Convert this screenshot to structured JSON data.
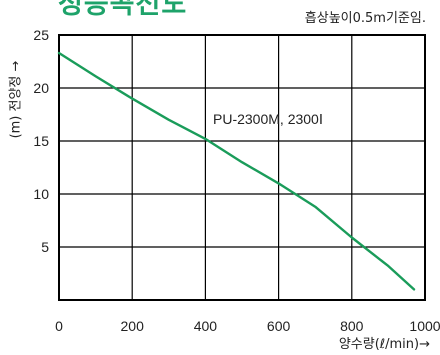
{
  "header": {
    "title_fragment": "성능곡선도",
    "note": "흡상높이0.5m기준임."
  },
  "chart_data": {
    "type": "line",
    "title": "성능곡선도",
    "xlabel": "양수량(ℓ/min)→",
    "ylabel": "(m) 전양정 →",
    "xlim": [
      0,
      1000
    ],
    "ylim": [
      0,
      25
    ],
    "x_ticks": [
      "0",
      "200",
      "400",
      "600",
      "800",
      "1000"
    ],
    "y_ticks": [
      "5",
      "10",
      "15",
      "20",
      "25"
    ],
    "grid": true,
    "series": [
      {
        "name": "PU-2300M, 2300Ⅰ",
        "color": "#1a9c5a",
        "x": [
          0,
          100,
          200,
          300,
          400,
          500,
          600,
          700,
          800,
          900,
          970
        ],
        "y": [
          23.3,
          21.1,
          19.0,
          17.0,
          15.2,
          13.0,
          11.0,
          8.8,
          5.9,
          3.2,
          1.0
        ]
      }
    ]
  }
}
